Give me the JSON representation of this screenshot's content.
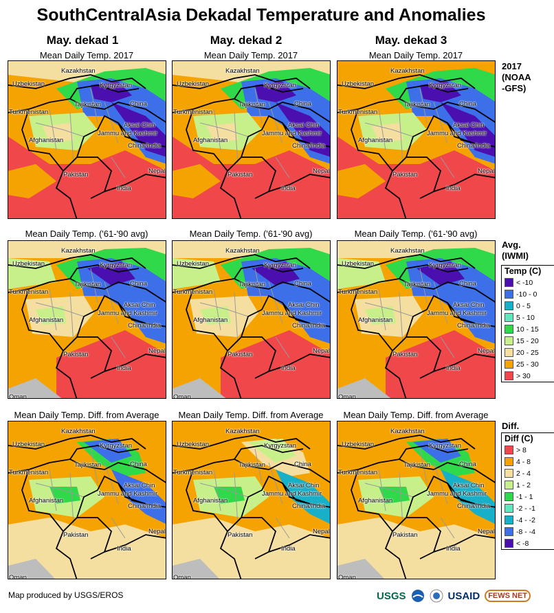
{
  "title": "SouthCentralAsia Dekadal Temperature and Anomalies",
  "columns": [
    "May. dekad 1",
    "May. dekad 2",
    "May. dekad 3"
  ],
  "rows": [
    {
      "panel_title": "Mean Daily Temp. 2017",
      "label_lines": [
        "2017",
        "(NOAA",
        "-GFS)"
      ]
    },
    {
      "panel_title": "Mean Daily Temp. ('61-'90 avg)",
      "label_lines": [
        "Avg.",
        "(IWMI)"
      ]
    },
    {
      "panel_title": "Mean Daily Temp. Diff. from Average",
      "label_lines": [
        "Diff."
      ]
    }
  ],
  "map_labels": {
    "kazakhstan": "Kazakhstan",
    "uzbekistan": "Uzbekistan",
    "kyrgyzstan": "Kyrgyzstan",
    "tajikistan": "Tajikistan",
    "china": "China",
    "turkmenistan": "Turkmenistan",
    "aksai_chin": "Aksai Chin",
    "jammu_kashmir": "Jammu and Kashmir",
    "afghanistan": "Afghanistan",
    "china_india": "China/India",
    "pakistan": "Pakistan",
    "nepal": "Nepal",
    "india": "India",
    "oman": "Oman"
  },
  "temp_legend": {
    "title": "Temp (C)",
    "items": [
      {
        "label": "< -10",
        "color": "#4b0fb0"
      },
      {
        "label": "-10 - 0",
        "color": "#3d6fe8"
      },
      {
        "label": "0 - 5",
        "color": "#18b0c8"
      },
      {
        "label": "5 - 10",
        "color": "#5fe8c0"
      },
      {
        "label": "10 - 15",
        "color": "#2fd94a"
      },
      {
        "label": "15 - 20",
        "color": "#c8f08a"
      },
      {
        "label": "20 - 25",
        "color": "#f5dfa0"
      },
      {
        "label": "25 - 30",
        "color": "#f5a300"
      },
      {
        "label": "> 30",
        "color": "#f0474a"
      }
    ]
  },
  "diff_legend": {
    "title": "Diff (C)",
    "items": [
      {
        "label": "> 8",
        "color": "#f0474a"
      },
      {
        "label": "4 - 8",
        "color": "#f5a300"
      },
      {
        "label": "2 - 4",
        "color": "#f5dfa0"
      },
      {
        "label": "1 - 2",
        "color": "#c8f08a"
      },
      {
        "label": "-1 - 1",
        "color": "#2fd94a"
      },
      {
        "label": "-2 - -1",
        "color": "#5fe8c0"
      },
      {
        "label": "-4 - -2",
        "color": "#18b0c8"
      },
      {
        "label": "-8 - -4",
        "color": "#3d6fe8"
      },
      {
        "label": "< -8",
        "color": "#4b0fb0"
      }
    ]
  },
  "footer": "Map produced by USGS/EROS",
  "logos": {
    "usgs": "USGS",
    "usaid": "USAID",
    "fews": "FEWS NET"
  }
}
